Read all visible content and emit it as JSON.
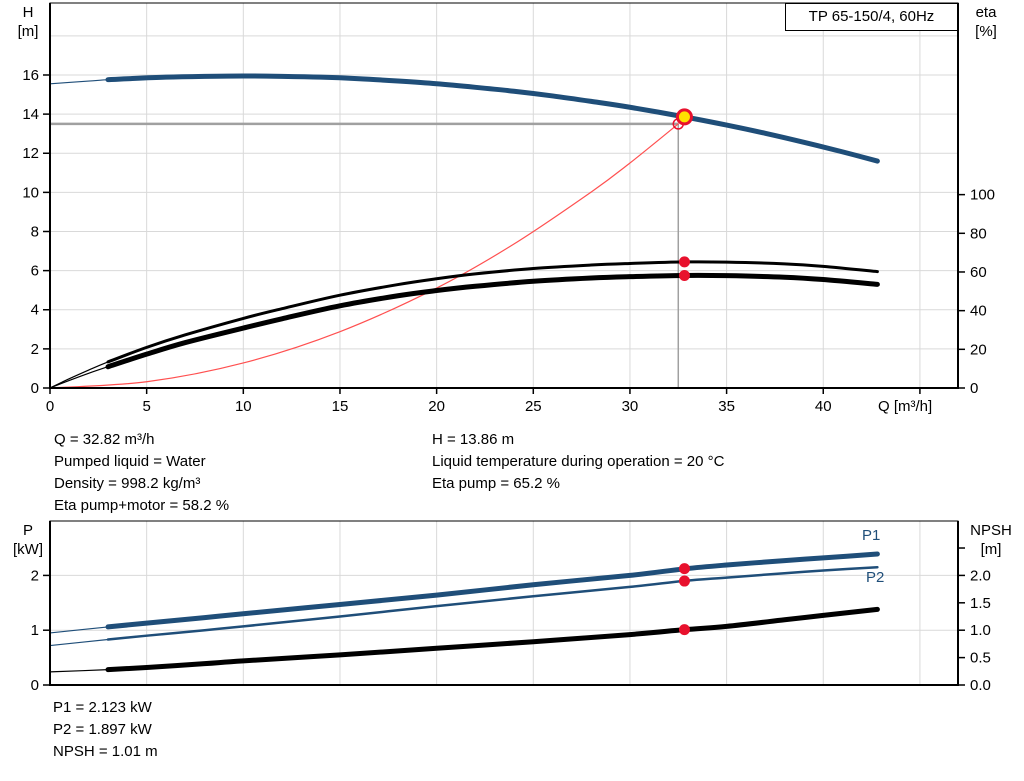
{
  "title_box": "TP 65-150/4, 60Hz",
  "colors": {
    "curve_blue": "#1f4e79",
    "curve_black": "#000000",
    "system_red": "#ff5050",
    "marker_red": "#e8112d",
    "marker_yellow": "#ffe100",
    "duty_gray": "#a0a0a0",
    "grid_gray": "#d9d9d9"
  },
  "axis_titles": {
    "h1": "H",
    "h2": "[m]",
    "eta1": "eta",
    "eta2": "[%]",
    "q": "Q [m³/h]",
    "p1": "P",
    "p2": "[kW]",
    "npsh1": "NPSH",
    "npsh2": "[m]"
  },
  "curve_labels": {
    "p1": "P1",
    "p2": "P2"
  },
  "info_top_left": [
    "Q = 32.82 m³/h",
    "Pumped liquid = Water",
    "Density = 998.2 kg/m³",
    "Eta pump+motor = 58.2 %"
  ],
  "info_top_right": [
    "H = 13.86 m",
    "Liquid temperature during operation = 20 °C",
    "Eta pump = 65.2 %"
  ],
  "info_bottom": [
    "P1 = 2.123 kW",
    "P2 = 1.897 kW",
    "NPSH = 1.01 m"
  ],
  "chart_data": [
    {
      "type": "line",
      "title": "TP 65-150/4, 60Hz",
      "x_axis": {
        "label": "Q [m³/h]",
        "min": 0,
        "max": 46.97
      },
      "y_left": {
        "label": "H [m]",
        "min": 0,
        "max": 19.68
      },
      "y_right": {
        "label": "eta [%]",
        "min": 0,
        "max": 199.1
      },
      "grid_v": [
        5,
        10,
        15,
        20,
        25,
        30,
        35,
        40,
        45
      ],
      "grid_h": [
        2,
        4,
        6,
        8,
        10,
        12,
        14,
        16,
        18
      ],
      "x_ticks": [
        {
          "v": 0,
          "t": "0"
        },
        {
          "v": 5,
          "t": "5"
        },
        {
          "v": 10,
          "t": "10"
        },
        {
          "v": 15,
          "t": "15"
        },
        {
          "v": 20,
          "t": "20"
        },
        {
          "v": 25,
          "t": "25"
        },
        {
          "v": 30,
          "t": "30"
        },
        {
          "v": 35,
          "t": "35"
        },
        {
          "v": 40,
          "t": "40"
        },
        {
          "v": 45,
          "t": ""
        }
      ],
      "y_left_ticks": [
        {
          "v": 0,
          "t": "0"
        },
        {
          "v": 2,
          "t": "2"
        },
        {
          "v": 4,
          "t": "4"
        },
        {
          "v": 6,
          "t": "6"
        },
        {
          "v": 8,
          "t": "8"
        },
        {
          "v": 10,
          "t": "10"
        },
        {
          "v": 12,
          "t": "12"
        },
        {
          "v": 14,
          "t": "14"
        },
        {
          "v": 16,
          "t": "16"
        }
      ],
      "y_right_ticks": [
        {
          "v": 0,
          "t": "0"
        },
        {
          "v": 20,
          "t": "20"
        },
        {
          "v": 40,
          "t": "40"
        },
        {
          "v": 60,
          "t": "60"
        },
        {
          "v": 80,
          "t": "80"
        },
        {
          "v": 100,
          "t": "100"
        }
      ],
      "duty_lines": {
        "q": 32.5,
        "h": 13.5
      },
      "series": [
        {
          "name": "system-curve",
          "axis": "left",
          "color": "#ff5050",
          "width": 1.2,
          "points": [
            [
              0,
              0
            ],
            [
              5,
              0.32
            ],
            [
              10,
              1.28
            ],
            [
              15,
              2.88
            ],
            [
              20,
              5.11
            ],
            [
              24,
              7.36
            ],
            [
              28,
              10.02
            ],
            [
              30,
              11.5
            ],
            [
              32.5,
              13.5
            ]
          ]
        },
        {
          "name": "eta-pump-curve",
          "axis": "right",
          "color": "#000000",
          "width": 3,
          "thin_until": 3,
          "points": [
            [
              0,
              0
            ],
            [
              1,
              4.8
            ],
            [
              2,
              9.3
            ],
            [
              3,
              13.5
            ],
            [
              5,
              21
            ],
            [
              7,
              27.5
            ],
            [
              10,
              36
            ],
            [
              12,
              41
            ],
            [
              15,
              48
            ],
            [
              18,
              53.5
            ],
            [
              20,
              56.5
            ],
            [
              22,
              59
            ],
            [
              25,
              61.8
            ],
            [
              28,
              63.6
            ],
            [
              30,
              64.4
            ],
            [
              32.82,
              65.2
            ],
            [
              35,
              65.1
            ],
            [
              38,
              64.2
            ],
            [
              40,
              62.9
            ],
            [
              42.8,
              60.2
            ]
          ]
        },
        {
          "name": "eta-pump-motor-curve",
          "axis": "right",
          "color": "#000000",
          "width": 5,
          "thin_until": 3,
          "points": [
            [
              0,
              0
            ],
            [
              1,
              3.9
            ],
            [
              2,
              7.6
            ],
            [
              3,
              11
            ],
            [
              5,
              17.5
            ],
            [
              7,
              23.5
            ],
            [
              10,
              31
            ],
            [
              12,
              35.8
            ],
            [
              15,
              42.5
            ],
            [
              18,
              47.7
            ],
            [
              20,
              50.4
            ],
            [
              22,
              52.6
            ],
            [
              25,
              55.2
            ],
            [
              28,
              56.9
            ],
            [
              30,
              57.6
            ],
            [
              32.82,
              58.2
            ],
            [
              35,
              58.1
            ],
            [
              38,
              57.3
            ],
            [
              40,
              56.1
            ],
            [
              42.8,
              53.6
            ]
          ]
        },
        {
          "name": "head-curve",
          "axis": "left",
          "color": "#1f4e79",
          "width": 5,
          "thin_until": 3,
          "points": [
            [
              0,
              15.55
            ],
            [
              2,
              15.69
            ],
            [
              3,
              15.76
            ],
            [
              4,
              15.81
            ],
            [
              6,
              15.89
            ],
            [
              8,
              15.93
            ],
            [
              10,
              15.95
            ],
            [
              12,
              15.93
            ],
            [
              14,
              15.89
            ],
            [
              16,
              15.81
            ],
            [
              18,
              15.69
            ],
            [
              20,
              15.55
            ],
            [
              22,
              15.37
            ],
            [
              24,
              15.17
            ],
            [
              26,
              14.93
            ],
            [
              28,
              14.65
            ],
            [
              30,
              14.35
            ],
            [
              32.82,
              13.86
            ],
            [
              35,
              13.44
            ],
            [
              37,
              13.02
            ],
            [
              39,
              12.56
            ],
            [
              41,
              12.07
            ],
            [
              42.8,
              11.6
            ]
          ]
        }
      ],
      "markers": [
        {
          "name": "requested-duty-marker",
          "shape": "ring",
          "axis": "left",
          "q": 32.5,
          "v": 13.5,
          "r": 5,
          "stroke": "#e8112d"
        },
        {
          "name": "duty-point-marker",
          "shape": "disc-ring",
          "axis": "left",
          "q": 32.82,
          "v": 13.86,
          "r": 7,
          "fill": "#ffe100",
          "stroke": "#e8112d"
        },
        {
          "name": "eta-pump-duty-dot",
          "shape": "disc",
          "axis": "right",
          "q": 32.82,
          "v": 65.2,
          "r": 5.5,
          "fill": "#e8112d"
        },
        {
          "name": "eta-pump-motor-duty-dot",
          "shape": "disc",
          "axis": "right",
          "q": 32.82,
          "v": 58.2,
          "r": 5.5,
          "fill": "#e8112d"
        }
      ],
      "duty_values": {
        "Q": "32.82 m³/h",
        "H": "13.86 m",
        "eta_pump": "65.2 %",
        "eta_pump_motor": "58.2 %"
      }
    },
    {
      "type": "line",
      "title": "Power and NPSH curves",
      "x_axis": {
        "label": "",
        "min": 0,
        "max": 46.97
      },
      "y_left": {
        "label": "P [kW]",
        "min": 0,
        "max": 2.993
      },
      "y_right": {
        "label": "NPSH [m]",
        "min": 0,
        "max": 2.993
      },
      "grid_v": [
        5,
        10,
        15,
        20,
        25,
        30,
        35,
        40,
        45
      ],
      "grid_h": [
        1,
        2
      ],
      "y_left_ticks": [
        {
          "v": 0,
          "t": "0"
        },
        {
          "v": 1,
          "t": "1"
        },
        {
          "v": 2,
          "t": "2"
        }
      ],
      "y_right_ticks": [
        {
          "v": 0,
          "t": "0.0"
        },
        {
          "v": 0.5,
          "t": "0.5"
        },
        {
          "v": 1,
          "t": "1.0"
        },
        {
          "v": 1.5,
          "t": "1.5"
        },
        {
          "v": 2,
          "t": "2.0"
        },
        {
          "v": 2.5,
          "t": ""
        }
      ],
      "series": [
        {
          "name": "p1-curve",
          "axis": "left",
          "color": "#1f4e79",
          "width": 5,
          "thin_until": 3,
          "points": [
            [
              0,
              0.95
            ],
            [
              3,
              1.06
            ],
            [
              5,
              1.13
            ],
            [
              8,
              1.23
            ],
            [
              10,
              1.3
            ],
            [
              15,
              1.47
            ],
            [
              20,
              1.64
            ],
            [
              25,
              1.83
            ],
            [
              30,
              2.0
            ],
            [
              32.82,
              2.12
            ],
            [
              35,
              2.19
            ],
            [
              38,
              2.27
            ],
            [
              40,
              2.32
            ],
            [
              42.8,
              2.39
            ]
          ]
        },
        {
          "name": "p2-curve",
          "axis": "left",
          "color": "#1f4e79",
          "width": 2.5,
          "thin_until": 3,
          "points": [
            [
              0,
              0.72
            ],
            [
              3,
              0.83
            ],
            [
              5,
              0.9
            ],
            [
              8,
              1.0
            ],
            [
              10,
              1.07
            ],
            [
              15,
              1.25
            ],
            [
              20,
              1.44
            ],
            [
              25,
              1.62
            ],
            [
              30,
              1.79
            ],
            [
              32.82,
              1.9
            ],
            [
              35,
              1.96
            ],
            [
              38,
              2.04
            ],
            [
              40,
              2.09
            ],
            [
              42.8,
              2.15
            ]
          ]
        },
        {
          "name": "npsh-curve",
          "axis": "right",
          "color": "#000000",
          "width": 5,
          "thin_until": 3,
          "points": [
            [
              0,
              0.24
            ],
            [
              3,
              0.28
            ],
            [
              5,
              0.32
            ],
            [
              8,
              0.39
            ],
            [
              10,
              0.44
            ],
            [
              15,
              0.55
            ],
            [
              20,
              0.67
            ],
            [
              25,
              0.79
            ],
            [
              30,
              0.92
            ],
            [
              32.82,
              1.01
            ],
            [
              35,
              1.07
            ],
            [
              38,
              1.19
            ],
            [
              40,
              1.27
            ],
            [
              42.8,
              1.38
            ]
          ]
        }
      ],
      "markers": [
        {
          "name": "p1-duty-dot",
          "shape": "disc",
          "axis": "left",
          "q": 32.82,
          "v": 2.123,
          "r": 5.5,
          "fill": "#e8112d"
        },
        {
          "name": "p2-duty-dot",
          "shape": "disc",
          "axis": "left",
          "q": 32.82,
          "v": 1.897,
          "r": 5.5,
          "fill": "#e8112d"
        },
        {
          "name": "npsh-duty-dot",
          "shape": "disc",
          "axis": "right",
          "q": 32.82,
          "v": 1.01,
          "r": 5.5,
          "fill": "#e8112d"
        }
      ],
      "duty_values": {
        "P1": "2.123 kW",
        "P2": "1.897 kW",
        "NPSH": "1.01 m"
      }
    }
  ]
}
